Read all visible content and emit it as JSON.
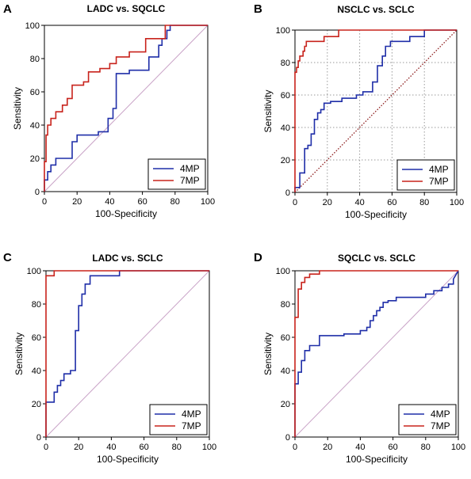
{
  "chart_data": [
    {
      "type": "line",
      "letter": "A",
      "title": "LADC vs. SQCLC",
      "xlabel": "100-Specificity",
      "ylabel": "Sensitivity",
      "xlim": [
        0,
        100
      ],
      "ylim": [
        0,
        100
      ],
      "xticks": [
        "0",
        "20",
        "40",
        "60",
        "80",
        "100"
      ],
      "yticks": [
        "0",
        "20",
        "40",
        "60",
        "80",
        "100"
      ],
      "grid": false,
      "grid_style": "none",
      "diagonal_style": "solid",
      "legend_position": "bottom-right",
      "series": [
        {
          "name": "4MP",
          "color": "#1f2ea8",
          "x": [
            0,
            0,
            2,
            2,
            4,
            4,
            7,
            7,
            17,
            17,
            20,
            20,
            33,
            33,
            39,
            39,
            42,
            42,
            44,
            44,
            52,
            52,
            64,
            64,
            70,
            70,
            72,
            72,
            75,
            75,
            77,
            77,
            100
          ],
          "y": [
            0,
            7,
            7,
            12,
            12,
            16,
            16,
            20,
            20,
            30,
            30,
            34,
            34,
            36,
            36,
            44,
            44,
            50,
            50,
            71,
            71,
            73,
            73,
            81,
            81,
            88,
            88,
            92,
            92,
            97,
            97,
            100,
            100
          ]
        },
        {
          "name": "7MP",
          "color": "#c8231c",
          "x": [
            0,
            0,
            1,
            1,
            2,
            2,
            4,
            4,
            7,
            7,
            11,
            11,
            14,
            14,
            17,
            17,
            24,
            24,
            27,
            27,
            34,
            34,
            40,
            40,
            44,
            44,
            52,
            52,
            62,
            62,
            74,
            74,
            100
          ],
          "y": [
            0,
            18,
            18,
            34,
            34,
            40,
            40,
            44,
            44,
            48,
            48,
            52,
            52,
            56,
            56,
            64,
            64,
            66,
            66,
            72,
            72,
            74,
            74,
            77,
            77,
            81,
            81,
            84,
            84,
            92,
            92,
            100,
            100
          ]
        }
      ]
    },
    {
      "type": "line",
      "letter": "B",
      "title": "NSCLC vs. SCLC",
      "xlabel": "100-Specificity",
      "ylabel": "Sensitivity",
      "xlim": [
        0,
        100
      ],
      "ylim": [
        0,
        100
      ],
      "xticks": [
        "0",
        "20",
        "40",
        "60",
        "80",
        "100"
      ],
      "yticks": [
        "0",
        "20",
        "40",
        "60",
        "80",
        "100"
      ],
      "grid": true,
      "grid_style": "dotted",
      "diagonal_style": "dotted",
      "legend_position": "bottom-right",
      "series": [
        {
          "name": "4MP",
          "color": "#1f2ea8",
          "x": [
            0,
            0,
            3,
            3,
            6,
            6,
            8,
            8,
            10,
            10,
            12,
            12,
            14,
            14,
            16,
            16,
            18,
            18,
            22,
            22,
            29,
            29,
            38,
            38,
            42,
            42,
            48,
            48,
            51,
            51,
            54,
            54,
            56,
            56,
            59,
            59,
            71,
            71,
            80,
            80,
            100
          ],
          "y": [
            0,
            3,
            3,
            12,
            12,
            27,
            27,
            29,
            29,
            36,
            36,
            45,
            45,
            49,
            49,
            51,
            51,
            55,
            55,
            56,
            56,
            58,
            58,
            60,
            60,
            62,
            62,
            68,
            68,
            78,
            78,
            84,
            84,
            90,
            90,
            93,
            93,
            96,
            96,
            100,
            100
          ]
        },
        {
          "name": "7MP",
          "color": "#c8231c",
          "x": [
            0,
            0,
            1,
            1,
            2,
            2,
            3,
            3,
            5,
            5,
            6,
            6,
            7,
            7,
            18,
            18,
            27,
            27,
            100
          ],
          "y": [
            0,
            74,
            74,
            77,
            77,
            81,
            81,
            84,
            84,
            87,
            87,
            90,
            90,
            93,
            93,
            96,
            96,
            100,
            100
          ]
        }
      ]
    },
    {
      "type": "line",
      "letter": "C",
      "title": "LADC vs. SCLC",
      "xlabel": "100-Specificity",
      "ylabel": "Sensitivity",
      "xlim": [
        0,
        100
      ],
      "ylim": [
        0,
        100
      ],
      "xticks": [
        "0",
        "20",
        "40",
        "60",
        "80",
        "100"
      ],
      "yticks": [
        "0",
        "20",
        "40",
        "60",
        "80",
        "100"
      ],
      "grid": false,
      "grid_style": "none",
      "diagonal_style": "solid",
      "legend_position": "bottom-right",
      "series": [
        {
          "name": "4MP",
          "color": "#1f2ea8",
          "x": [
            0,
            0,
            5,
            5,
            7,
            7,
            9,
            9,
            11,
            11,
            15,
            15,
            18,
            18,
            20,
            20,
            22,
            22,
            24,
            24,
            27,
            27,
            45,
            45,
            100
          ],
          "y": [
            0,
            21,
            21,
            27,
            27,
            31,
            31,
            34,
            34,
            38,
            38,
            40,
            40,
            64,
            64,
            79,
            79,
            86,
            86,
            92,
            92,
            97,
            97,
            100,
            100
          ]
        },
        {
          "name": "7MP",
          "color": "#c8231c",
          "x": [
            0,
            0,
            5,
            5,
            100
          ],
          "y": [
            0,
            97,
            97,
            100,
            100
          ]
        }
      ]
    },
    {
      "type": "line",
      "letter": "D",
      "title": "SQCLC vs. SCLC",
      "xlabel": "100-Specificity",
      "ylabel": "Sensitivity",
      "xlim": [
        0,
        100
      ],
      "ylim": [
        0,
        100
      ],
      "xticks": [
        "0",
        "20",
        "40",
        "60",
        "80",
        "100"
      ],
      "yticks": [
        "0",
        "20",
        "40",
        "60",
        "80",
        "100"
      ],
      "grid": false,
      "grid_style": "none",
      "diagonal_style": "solid",
      "legend_position": "bottom-right",
      "series": [
        {
          "name": "4MP",
          "color": "#1f2ea8",
          "x": [
            0,
            0,
            2,
            2,
            4,
            4,
            6,
            6,
            9,
            9,
            15,
            15,
            30,
            30,
            40,
            40,
            44,
            44,
            46,
            46,
            48,
            48,
            50,
            50,
            52,
            52,
            54,
            54,
            57,
            57,
            62,
            62,
            80,
            80,
            85,
            85,
            90,
            90,
            94,
            94,
            97,
            97,
            100
          ],
          "y": [
            0,
            32,
            32,
            39,
            39,
            46,
            46,
            52,
            52,
            55,
            55,
            61,
            61,
            62,
            62,
            64,
            64,
            66,
            66,
            70,
            70,
            73,
            73,
            76,
            76,
            78,
            78,
            81,
            81,
            82,
            82,
            84,
            84,
            86,
            86,
            88,
            88,
            90,
            90,
            92,
            92,
            95,
            100
          ]
        },
        {
          "name": "7MP",
          "color": "#c8231c",
          "x": [
            0,
            0,
            2,
            2,
            4,
            4,
            6,
            6,
            9,
            9,
            15,
            15,
            100
          ],
          "y": [
            0,
            72,
            72,
            89,
            89,
            93,
            93,
            96,
            96,
            98,
            98,
            100,
            100
          ]
        }
      ]
    }
  ]
}
